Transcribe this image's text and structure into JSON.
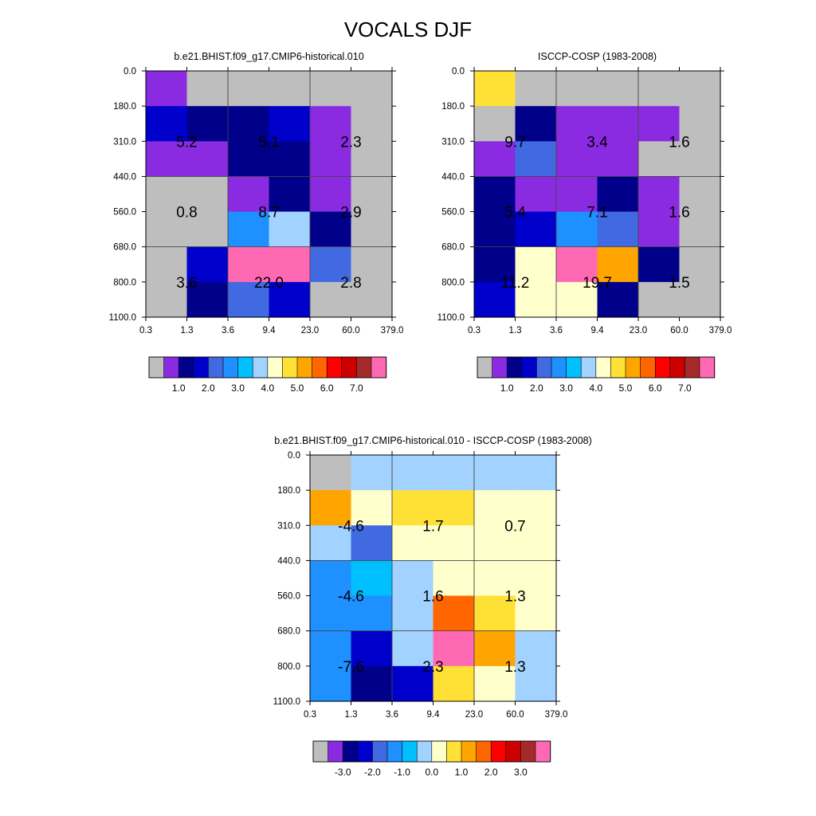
{
  "title": "VOCALS DJF",
  "palette": {
    "abs": [
      "#bebebe",
      "#8a2be2",
      "#00008b",
      "#0000cd",
      "#4169e1",
      "#1e90ff",
      "#00bfff",
      "#a2d2ff",
      "#ffffcc",
      "#ffe135",
      "#ffa500",
      "#ff6600",
      "#ff0000",
      "#cd0000",
      "#a52a2a",
      "#ff69b4"
    ],
    "diff": [
      "#bebebe",
      "#8a2be2",
      "#00008b",
      "#0000cd",
      "#4169e1",
      "#1e90ff",
      "#00bfff",
      "#a2d2ff",
      "#ffffcc",
      "#ffe135",
      "#ffa500",
      "#ff6600",
      "#ff0000",
      "#cd0000",
      "#a52a2a",
      "#ff69b4"
    ]
  },
  "chart_data": [
    {
      "type": "heatmap",
      "title": "b.e21.BHIST.f09_g17.CMIP6-historical.010",
      "x_ticks": [
        "0.3",
        "1.3",
        "3.6",
        "9.4",
        "23.0",
        "60.0",
        "379.0"
      ],
      "y_ticks": [
        "0.0",
        "180.0",
        "310.0",
        "440.0",
        "560.0",
        "680.0",
        "800.0",
        "1100.0"
      ],
      "cell_colors": [
        [
          "#8a2be2",
          "#bebebe",
          "#bebebe",
          "#bebebe",
          "#bebebe",
          "#bebebe"
        ],
        [
          "#0000cd",
          "#00008b",
          "#00008b",
          "#0000cd",
          "#8a2be2",
          "#bebebe"
        ],
        [
          "#8a2be2",
          "#8a2be2",
          "#00008b",
          "#00008b",
          "#8a2be2",
          "#bebebe"
        ],
        [
          "#bebebe",
          "#bebebe",
          "#8a2be2",
          "#00008b",
          "#8a2be2",
          "#bebebe"
        ],
        [
          "#bebebe",
          "#bebebe",
          "#1e90ff",
          "#a2d2ff",
          "#00008b",
          "#bebebe"
        ],
        [
          "#bebebe",
          "#0000cd",
          "#ff69b4",
          "#ff69b4",
          "#4169e1",
          "#bebebe"
        ],
        [
          "#bebebe",
          "#00008b",
          "#4169e1",
          "#0000cd",
          "#bebebe",
          "#bebebe"
        ]
      ],
      "values": [
        {
          "label": "5.2",
          "row": 1,
          "col": 0
        },
        {
          "label": "5.1",
          "row": 1,
          "col": 2
        },
        {
          "label": "2.3",
          "row": 1,
          "col": 4
        },
        {
          "label": "0.8",
          "row": 3,
          "col": 0
        },
        {
          "label": "8.7",
          "row": 3,
          "col": 2
        },
        {
          "label": "2.9",
          "row": 3,
          "col": 4
        },
        {
          "label": "3.6",
          "row": 5,
          "col": 0
        },
        {
          "label": "22.0",
          "row": 5,
          "col": 2
        },
        {
          "label": "2.8",
          "row": 5,
          "col": 4
        }
      ],
      "colorbar": {
        "palette": "abs",
        "labels": [
          "1.0",
          "2.0",
          "3.0",
          "4.0",
          "5.0",
          "6.0",
          "7.0"
        ],
        "label_start": 2
      }
    },
    {
      "type": "heatmap",
      "title": "ISCCP-COSP (1983-2008)",
      "x_ticks": [
        "0.3",
        "1.3",
        "3.6",
        "9.4",
        "23.0",
        "60.0",
        "379.0"
      ],
      "y_ticks": [
        "0.0",
        "180.0",
        "310.0",
        "440.0",
        "560.0",
        "680.0",
        "800.0",
        "1100.0"
      ],
      "cell_colors": [
        [
          "#ffe135",
          "#bebebe",
          "#bebebe",
          "#bebebe",
          "#bebebe",
          "#bebebe"
        ],
        [
          "#bebebe",
          "#00008b",
          "#8a2be2",
          "#8a2be2",
          "#8a2be2",
          "#bebebe"
        ],
        [
          "#8a2be2",
          "#4169e1",
          "#8a2be2",
          "#8a2be2",
          "#bebebe",
          "#bebebe"
        ],
        [
          "#00008b",
          "#8a2be2",
          "#8a2be2",
          "#00008b",
          "#8a2be2",
          "#bebebe"
        ],
        [
          "#00008b",
          "#0000cd",
          "#1e90ff",
          "#4169e1",
          "#8a2be2",
          "#bebebe"
        ],
        [
          "#00008b",
          "#ffffcc",
          "#ff69b4",
          "#ffa500",
          "#00008b",
          "#bebebe"
        ],
        [
          "#0000cd",
          "#ffffcc",
          "#ffffcc",
          "#00008b",
          "#bebebe",
          "#bebebe"
        ]
      ],
      "values": [
        {
          "label": "9.7",
          "row": 1,
          "col": 0
        },
        {
          "label": "3.4",
          "row": 1,
          "col": 2
        },
        {
          "label": "1.6",
          "row": 1,
          "col": 4
        },
        {
          "label": "5.4",
          "row": 3,
          "col": 0
        },
        {
          "label": "7.1",
          "row": 3,
          "col": 2
        },
        {
          "label": "1.6",
          "row": 3,
          "col": 4
        },
        {
          "label": "11.2",
          "row": 5,
          "col": 0
        },
        {
          "label": "19.7",
          "row": 5,
          "col": 2
        },
        {
          "label": "1.5",
          "row": 5,
          "col": 4
        }
      ],
      "colorbar": {
        "palette": "abs",
        "labels": [
          "1.0",
          "2.0",
          "3.0",
          "4.0",
          "5.0",
          "6.0",
          "7.0"
        ],
        "label_start": 2
      }
    },
    {
      "type": "heatmap",
      "title": "b.e21.BHIST.f09_g17.CMIP6-historical.010 - ISCCP-COSP (1983-2008)",
      "x_ticks": [
        "0.3",
        "1.3",
        "3.6",
        "9.4",
        "23.0",
        "60.0",
        "379.0"
      ],
      "y_ticks": [
        "0.0",
        "180.0",
        "310.0",
        "440.0",
        "560.0",
        "680.0",
        "800.0",
        "1100.0"
      ],
      "cell_colors": [
        [
          "#bebebe",
          "#a2d2ff",
          "#a2d2ff",
          "#a2d2ff",
          "#a2d2ff",
          "#a2d2ff"
        ],
        [
          "#ffa500",
          "#ffffcc",
          "#ffe135",
          "#ffe135",
          "#ffffcc",
          "#ffffcc"
        ],
        [
          "#a2d2ff",
          "#4169e1",
          "#ffffcc",
          "#ffffcc",
          "#ffffcc",
          "#ffffcc"
        ],
        [
          "#1e90ff",
          "#00bfff",
          "#a2d2ff",
          "#ffffcc",
          "#ffffcc",
          "#ffffcc"
        ],
        [
          "#1e90ff",
          "#1e90ff",
          "#a2d2ff",
          "#ff6600",
          "#ffe135",
          "#ffffcc"
        ],
        [
          "#1e90ff",
          "#0000cd",
          "#a2d2ff",
          "#ff69b4",
          "#ffa500",
          "#a2d2ff"
        ],
        [
          "#1e90ff",
          "#00008b",
          "#0000cd",
          "#ffe135",
          "#ffffcc",
          "#a2d2ff"
        ]
      ],
      "values": [
        {
          "label": "-4.6",
          "row": 1,
          "col": 0
        },
        {
          "label": "1.7",
          "row": 1,
          "col": 2
        },
        {
          "label": "0.7",
          "row": 1,
          "col": 4
        },
        {
          "label": "-4.6",
          "row": 3,
          "col": 0
        },
        {
          "label": "1.6",
          "row": 3,
          "col": 2
        },
        {
          "label": "1.3",
          "row": 3,
          "col": 4
        },
        {
          "label": "-7.6",
          "row": 5,
          "col": 0
        },
        {
          "label": "2.3",
          "row": 5,
          "col": 2
        },
        {
          "label": "1.3",
          "row": 5,
          "col": 4
        }
      ],
      "colorbar": {
        "palette": "diff",
        "labels": [
          "-3.0",
          "-2.0",
          "-1.0",
          "0.0",
          "1.0",
          "2.0",
          "3.0"
        ],
        "label_start": 2
      }
    }
  ]
}
